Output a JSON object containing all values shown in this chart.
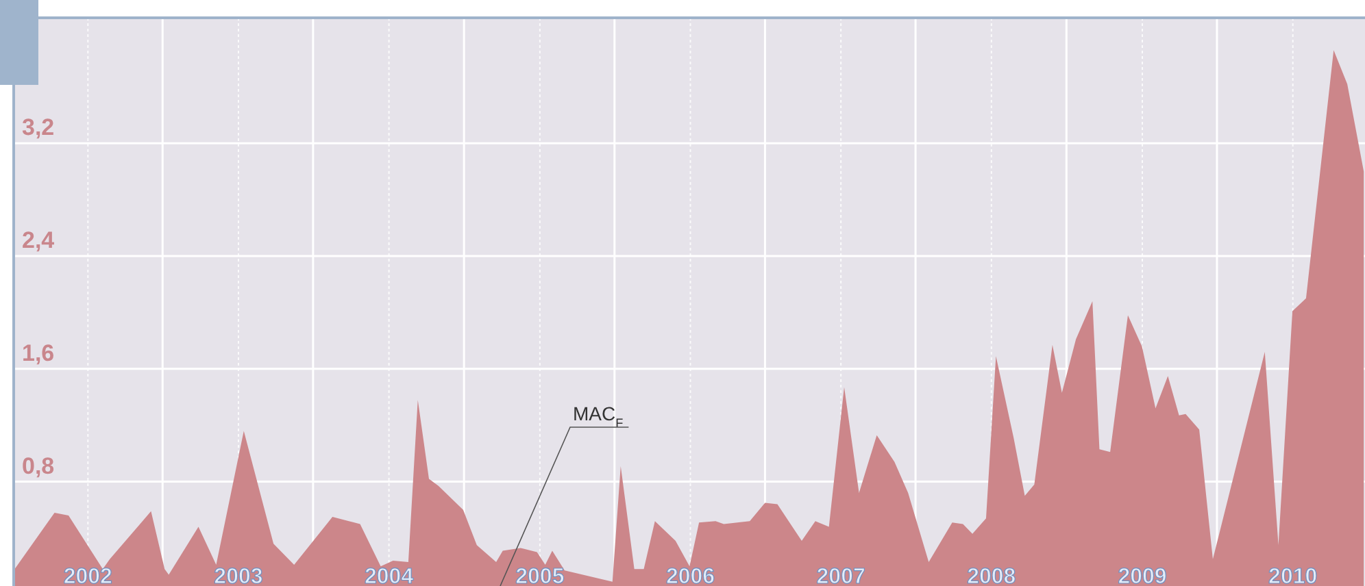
{
  "chart_data": {
    "type": "area",
    "x": [
      "2001-07-05",
      "2001-10-12",
      "2001-11-15",
      "2002-02-06",
      "2002-02-23",
      "2002-06-03",
      "2002-07-06",
      "2002-07-16",
      "2002-09-26",
      "2002-11-08",
      "2003-01-14",
      "2003-03-27",
      "2003-05-16",
      "2003-08-17",
      "2003-10-23",
      "2003-12-12",
      "2004-01-11",
      "2004-02-17",
      "2004-03-11",
      "2004-04-07",
      "2004-04-30",
      "2004-06-29",
      "2004-08-01",
      "2004-09-17",
      "2004-10-03",
      "2004-11-15",
      "2004-12-25",
      "2005-01-14",
      "2005-01-31",
      "2005-03-02",
      "2005-06-26",
      "2005-07-16",
      "2005-08-18",
      "2005-09-10",
      "2005-10-07",
      "2005-11-26",
      "2005-12-30",
      "2006-01-22",
      "2006-03-03",
      "2006-03-23",
      "2006-05-25",
      "2006-07-01",
      "2006-07-31",
      "2006-09-28",
      "2006-10-31",
      "2006-12-03",
      "2007-01-09",
      "2007-02-14",
      "2007-03-29",
      "2007-05-11",
      "2007-06-13",
      "2007-08-02",
      "2007-09-28",
      "2007-10-24",
      "2007-11-16",
      "2007-12-19",
      "2008-01-12",
      "2008-02-24",
      "2008-03-22",
      "2008-04-14",
      "2008-05-28",
      "2008-06-20",
      "2008-07-24",
      "2008-09-02",
      "2008-09-19",
      "2008-10-15",
      "2008-11-27",
      "2008-12-31",
      "2009-02-02",
      "2009-03-04",
      "2009-03-31",
      "2009-04-16",
      "2009-05-19",
      "2009-06-21",
      "2009-10-25",
      "2009-11-27",
      "2009-12-31",
      "2010-02-02",
      "2010-04-10",
      "2010-05-13",
      "2010-06-22"
    ],
    "series": [
      {
        "name": "MAC$_{F}$",
        "color": "#cc868a",
        "values": [
          0.17,
          0.58,
          0.56,
          0.18,
          0.25,
          0.59,
          0.18,
          0.14,
          0.48,
          0.21,
          1.16,
          0.36,
          0.21,
          0.55,
          0.5,
          0.2,
          0.24,
          0.23,
          1.38,
          0.82,
          0.77,
          0.6,
          0.35,
          0.23,
          0.31,
          0.33,
          0.3,
          0.21,
          0.31,
          0.17,
          0.09,
          0.91,
          0.18,
          0.18,
          0.52,
          0.38,
          0.2,
          0.51,
          0.52,
          0.5,
          0.52,
          0.65,
          0.64,
          0.38,
          0.52,
          0.48,
          1.47,
          0.72,
          1.13,
          0.94,
          0.72,
          0.23,
          0.51,
          0.5,
          0.43,
          0.54,
          1.69,
          1.11,
          0.7,
          0.78,
          1.77,
          1.43,
          1.81,
          2.08,
          1.03,
          1.01,
          1.98,
          1.76,
          1.32,
          1.55,
          1.27,
          1.28,
          1.17,
          0.25,
          1.72,
          0.35,
          2.01,
          2.1,
          3.86,
          3.62,
          3.0
        ]
      }
    ],
    "xlim": [
      "2001-07-05",
      "2010-06-25"
    ],
    "xticks": [
      {
        "value": "2002-01-01",
        "label": "2002"
      },
      {
        "value": "2002-07-01",
        "label": null
      },
      {
        "value": "2003-01-01",
        "label": "2003"
      },
      {
        "value": "2003-07-01",
        "label": null
      },
      {
        "value": "2004-01-01",
        "label": "2004"
      },
      {
        "value": "2004-07-01",
        "label": null
      },
      {
        "value": "2005-01-01",
        "label": "2005"
      },
      {
        "value": "2005-07-01",
        "label": null
      },
      {
        "value": "2006-01-01",
        "label": "2006"
      },
      {
        "value": "2006-07-01",
        "label": null
      },
      {
        "value": "2007-01-01",
        "label": "2007"
      },
      {
        "value": "2007-07-01",
        "label": null
      },
      {
        "value": "2008-01-01",
        "label": "2008"
      },
      {
        "value": "2008-07-01",
        "label": null
      },
      {
        "value": "2009-01-01",
        "label": "2009"
      },
      {
        "value": "2009-07-01",
        "label": null
      },
      {
        "value": "2010-01-01",
        "label": "2010"
      }
    ],
    "ylim": [
      0.06,
      4.09
    ],
    "yticks": [
      {
        "value": 0.8,
        "label": "0,8"
      },
      {
        "value": 1.6,
        "label": "1,6"
      },
      {
        "value": 2.4,
        "label": "2,4"
      },
      {
        "value": 3.2,
        "label": "3,2"
      }
    ],
    "grid": true
  }
}
